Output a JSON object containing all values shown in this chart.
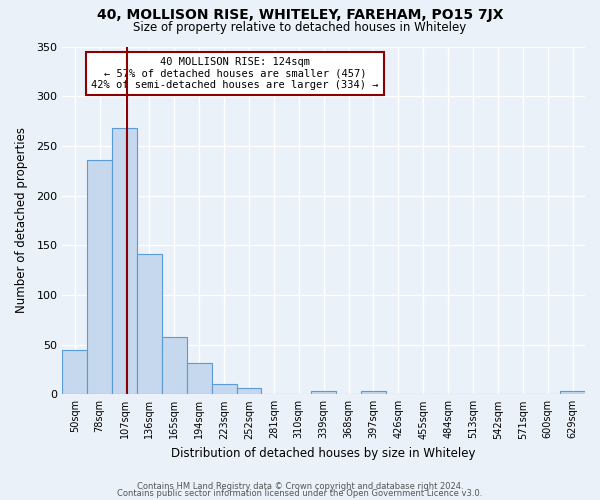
{
  "title": "40, MOLLISON RISE, WHITELEY, FAREHAM, PO15 7JX",
  "subtitle": "Size of property relative to detached houses in Whiteley",
  "xlabel": "Distribution of detached houses by size in Whiteley",
  "ylabel": "Number of detached properties",
  "bar_labels": [
    "50sqm",
    "78sqm",
    "107sqm",
    "136sqm",
    "165sqm",
    "194sqm",
    "223sqm",
    "252sqm",
    "281sqm",
    "310sqm",
    "339sqm",
    "368sqm",
    "397sqm",
    "426sqm",
    "455sqm",
    "484sqm",
    "513sqm",
    "542sqm",
    "571sqm",
    "600sqm",
    "629sqm"
  ],
  "bar_values": [
    45,
    236,
    268,
    141,
    58,
    31,
    10,
    6,
    0,
    0,
    3,
    0,
    3,
    0,
    0,
    0,
    0,
    0,
    0,
    0,
    3
  ],
  "bar_color": "#c5d8ed",
  "bar_edge_color": "#5b9bd5",
  "background_color": "#eaf1f8",
  "grid_color": "#ffffff",
  "vline_color": "#8b0000",
  "annotation_title": "40 MOLLISON RISE: 124sqm",
  "annotation_line1": "← 57% of detached houses are smaller (457)",
  "annotation_line2": "42% of semi-detached houses are larger (334) →",
  "annotation_box_edge": "#8b0000",
  "ylim": [
    0,
    350
  ],
  "yticks": [
    0,
    50,
    100,
    150,
    200,
    250,
    300,
    350
  ],
  "footer1": "Contains HM Land Registry data © Crown copyright and database right 2024.",
  "footer2": "Contains public sector information licensed under the Open Government Licence v3.0."
}
